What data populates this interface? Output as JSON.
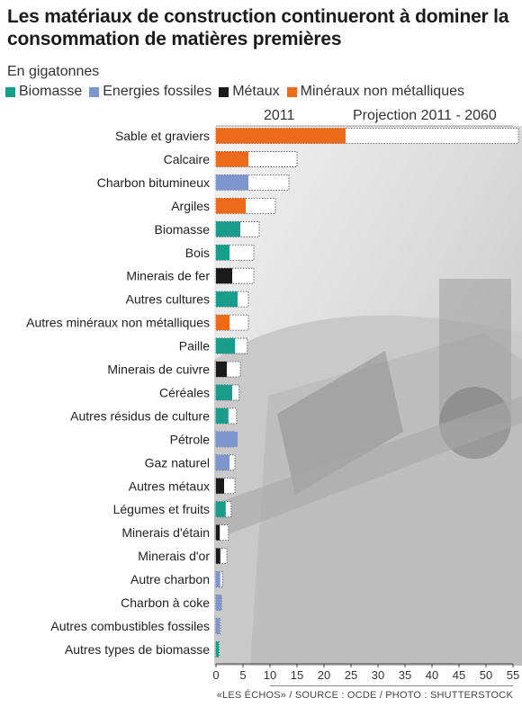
{
  "title": "Les matériaux de construction continueront à dominer la consommation de matières premières",
  "unit_label": "En gigatonnes",
  "legend": [
    {
      "label": "Biomasse",
      "color": "#1a9c8c"
    },
    {
      "label": "Energies fossiles",
      "color": "#7f96cc"
    },
    {
      "label": "Métaux",
      "color": "#1a1a1a"
    },
    {
      "label": "Minéraux non métalliques",
      "color": "#ee6a1b"
    }
  ],
  "column_headers": {
    "left": "2011",
    "right": "Projection 2011 - 2060"
  },
  "source": "«LES ÉCHOS» / SOURCE : OCDE / PHOTO : SHUTTERSTOCK",
  "chart_data": {
    "type": "bar",
    "orientation": "horizontal",
    "xlim": [
      0,
      55
    ],
    "xticks": [
      0,
      5,
      10,
      15,
      20,
      25,
      30,
      35,
      40,
      45,
      50,
      55
    ],
    "series": [
      {
        "name": "2011",
        "values": [
          24,
          6,
          6,
          5.5,
          4.5,
          2.5,
          3,
          4,
          2.5,
          3.5,
          2,
          3,
          2.3,
          4,
          2.5,
          1.5,
          1.8,
          0.7,
          0.8,
          0.8,
          1,
          0.7,
          0.5
        ]
      },
      {
        "name": "Projection 2011 - 2060",
        "values": [
          56,
          15,
          13.5,
          11,
          8,
          7,
          7,
          6,
          6,
          5.8,
          4.5,
          4.3,
          3.8,
          3.5,
          3.5,
          3.5,
          2.8,
          2.3,
          2,
          1.2,
          1,
          0.8,
          0.6
        ]
      }
    ],
    "categories": [
      "Sable et graviers",
      "Calcaire",
      "Charbon bitumineux",
      "Argiles",
      "Biomasse",
      "Bois",
      "Minerais de fer",
      "Autres cultures",
      "Autres minéraux non métalliques",
      "Paille",
      "Minerais de cuivre",
      "Céréales",
      "Autres résidus de culture",
      "Pétrole",
      "Gaz naturel",
      "Autres métaux",
      "Légumes et fruits",
      "Minerais d'étain",
      "Minerais d'or",
      "Autre charbon",
      "Charbon à coke",
      "Autres combustibles fossiles",
      "Autres types de biomasse"
    ],
    "category_group": [
      "Minéraux non métalliques",
      "Minéraux non métalliques",
      "Energies fossiles",
      "Minéraux non métalliques",
      "Biomasse",
      "Biomasse",
      "Métaux",
      "Biomasse",
      "Minéraux non métalliques",
      "Biomasse",
      "Métaux",
      "Biomasse",
      "Biomasse",
      "Energies fossiles",
      "Energies fossiles",
      "Métaux",
      "Biomasse",
      "Métaux",
      "Métaux",
      "Energies fossiles",
      "Energies fossiles",
      "Energies fossiles",
      "Biomasse"
    ]
  }
}
